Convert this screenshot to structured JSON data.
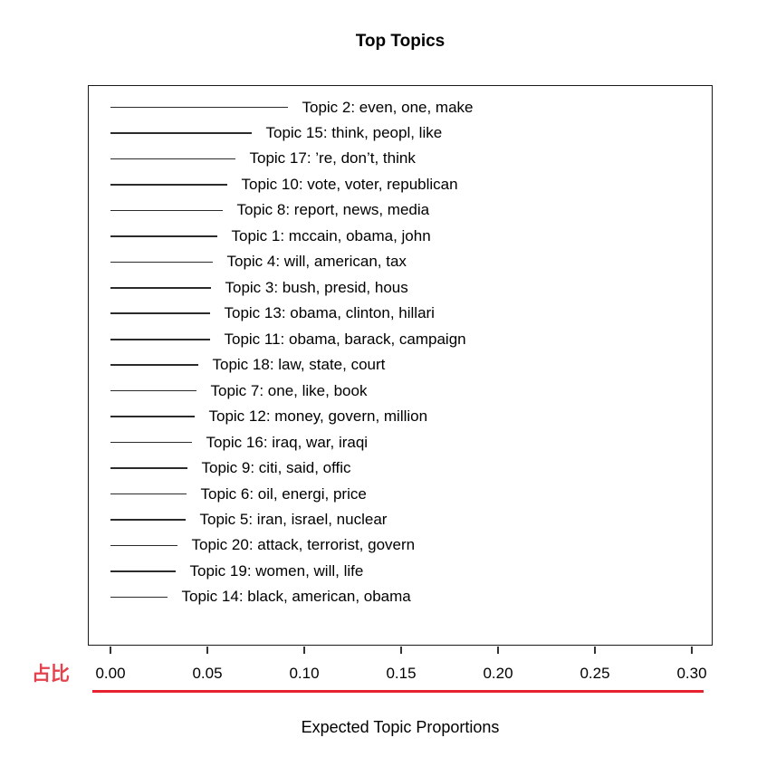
{
  "page": {
    "background": "#ffffff"
  },
  "colors": {
    "segment_line": "#2b2b2b",
    "box_border": "#1a1a1a",
    "text": "#000000",
    "annotation_red": "#e4434d",
    "underline_red": "#e62230"
  },
  "annotation": {
    "label": "占比"
  },
  "chart_data": {
    "type": "bar",
    "subtype": "horizontal-segment-plot (R stm top topics)",
    "title": "Top Topics",
    "xlabel": "Expected Topic Proportions",
    "ylabel": "",
    "xlim": [
      0,
      0.3
    ],
    "grid": false,
    "legend": "none",
    "xtick_values": [
      0,
      0.05,
      0.1,
      0.15,
      0.2,
      0.25,
      0.3
    ],
    "xtick_labels": [
      "0.00",
      "0.05",
      "0.10",
      "0.15",
      "0.20",
      "0.25",
      "0.30"
    ],
    "topics": [
      {
        "label": "Topic 2: even, one, make",
        "value": 0.0916
      },
      {
        "label": "Topic 15: think, peopl, like",
        "value": 0.0729
      },
      {
        "label": "Topic 17: ’re, don’t, think",
        "value": 0.0645
      },
      {
        "label": "Topic 10: vote, voter, republican",
        "value": 0.0603
      },
      {
        "label": "Topic 8: report, news, media",
        "value": 0.0579
      },
      {
        "label": "Topic 1: mccain, obama, john",
        "value": 0.0551
      },
      {
        "label": "Topic 4: will, american, tax",
        "value": 0.0528
      },
      {
        "label": "Topic 3: bush, presid, hous",
        "value": 0.0519
      },
      {
        "label": "Topic 13: obama, clinton, hillari",
        "value": 0.0516
      },
      {
        "label": "Topic 11: obama, barack, campaign",
        "value": 0.0512
      },
      {
        "label": "Topic 18: law, state, court",
        "value": 0.0453
      },
      {
        "label": "Topic 7: one, like, book",
        "value": 0.0444
      },
      {
        "label": "Topic 12: money, govern, million",
        "value": 0.0435
      },
      {
        "label": "Topic 16: iraq, war, iraqi",
        "value": 0.0421
      },
      {
        "label": "Topic 9: citi, said, offic",
        "value": 0.0395
      },
      {
        "label": "Topic 6: oil, energi, price",
        "value": 0.0393
      },
      {
        "label": "Topic 5: iran, israel, nuclear",
        "value": 0.0388
      },
      {
        "label": "Topic 20: attack, terrorist, govern",
        "value": 0.0346
      },
      {
        "label": "Topic 19: women, will, life",
        "value": 0.0338
      },
      {
        "label": "Topic 14: black, american, obama",
        "value": 0.0294
      }
    ]
  }
}
